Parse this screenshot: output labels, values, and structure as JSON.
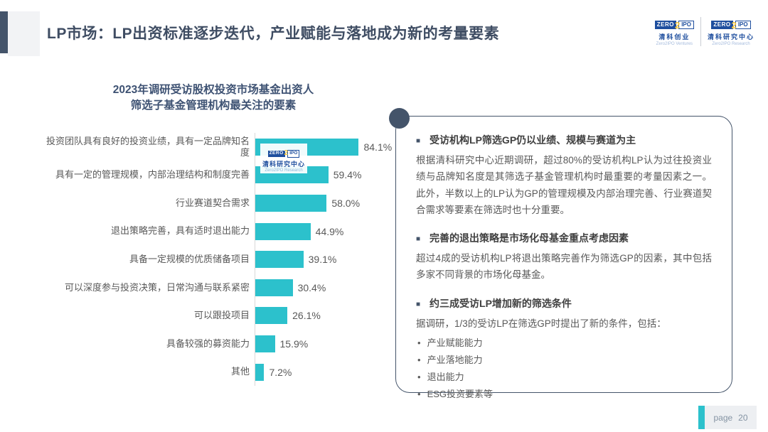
{
  "header": {
    "title": "LP市场：LP出资标准逐步迭代，产业赋能与落地成为新的考量要素",
    "logos": [
      {
        "brand_zero": "ZERO",
        "brand_two": "2",
        "brand_ipo": "IPO",
        "zh": "清科创业",
        "en": "Zero2IPO Ventures"
      },
      {
        "brand_zero": "ZERO",
        "brand_two": "2",
        "brand_ipo": "IPO",
        "zh": "清科研究中心",
        "en": "Zero2IPO Research"
      }
    ]
  },
  "chart_data": {
    "type": "bar",
    "orientation": "horizontal",
    "title_line1": "2023年调研受访股权投资市场基金出资人",
    "title_line2": "筛选子基金管理机构最关注的要素",
    "categories": [
      "投资团队具有良好的投资业绩，具有一定品牌知名度",
      "具有一定的管理规模，内部治理结构和制度完善",
      "行业赛道契合需求",
      "退出策略完善，具有适时退出能力",
      "具备一定规模的优质储备项目",
      "可以深度参与投资决策，日常沟通与联系紧密",
      "可以跟投项目",
      "具备较强的募资能力",
      "其他"
    ],
    "values": [
      84.1,
      59.4,
      58.0,
      44.9,
      39.1,
      30.4,
      26.1,
      15.9,
      7.2
    ],
    "value_labels": [
      "84.1%",
      "59.4%",
      "58.0%",
      "44.9%",
      "39.1%",
      "30.4%",
      "26.1%",
      "15.9%",
      "7.2%"
    ],
    "xlim": [
      0,
      100
    ],
    "grid": false,
    "legend": "none",
    "bar_color": "#2CC1CC"
  },
  "watermark": {
    "brand_zero": "ZERO",
    "brand_two": "2",
    "brand_ipo": "IPO",
    "zh": "清科研究中心",
    "en": "Zero2IPO Research"
  },
  "panel": {
    "square_bullet": "■",
    "dot_bullet": "•",
    "sections": [
      {
        "heading": "受访机构LP筛选GP仍以业绩、规模与赛道为主",
        "body": "根据清科研究中心近期调研，超过80%的受访机构LP认为过往投资业绩与品牌知名度是其筛选子基金管理机构时最重要的考量因素之一。此外，半数以上的LP认为GP的管理规模及内部治理完善、行业赛道契合需求等要素在筛选时也十分重要。",
        "list": []
      },
      {
        "heading": "完善的退出策略是市场化母基金重点考虑因素",
        "body": "超过4成的受访机构LP将退出策略完善作为筛选GP的因素，其中包括多家不同背景的市场化母基金。",
        "list": []
      },
      {
        "heading": "约三成受访LP增加新的筛选条件",
        "body": "据调研，1/3的受访LP在筛选GP时提出了新的条件，包括：",
        "list": [
          "产业赋能能力",
          "产业落地能力",
          "退出能力",
          "ESG投资要素等"
        ]
      }
    ]
  },
  "footer": {
    "page_label": "page",
    "page_number": "20"
  },
  "colors": {
    "accent_navy": "#44546A",
    "title_text": "#3F4D63",
    "chart_title_text": "#3E5273",
    "bar_teal": "#2CC1CC",
    "body_gray": "#595959",
    "axis_gray": "#D8D8D8",
    "logo_blue": "#1E4E9E",
    "logo_yellow": "#F2C33D",
    "footer_text": "#8493A3"
  }
}
